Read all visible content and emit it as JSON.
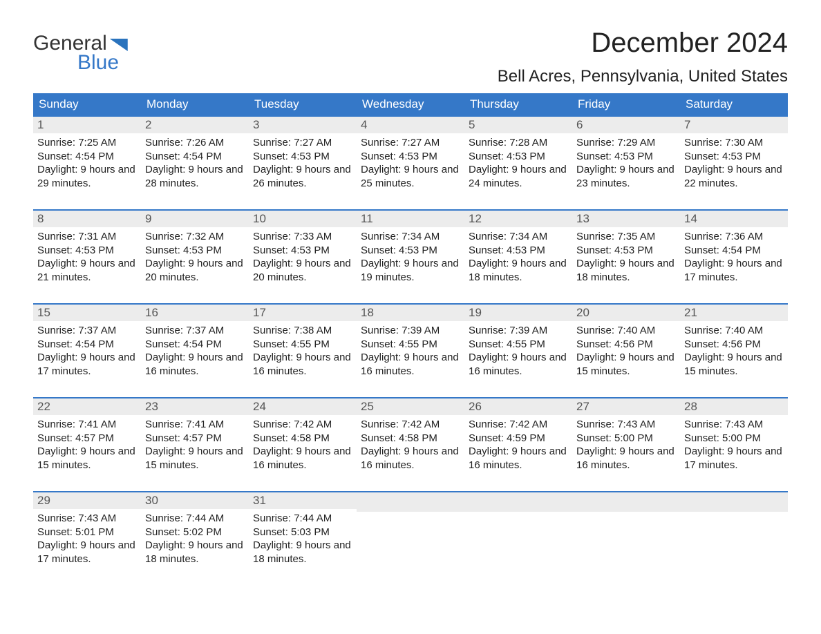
{
  "logo": {
    "word1": "General",
    "word2": "Blue"
  },
  "title": "December 2024",
  "location": "Bell Acres, Pennsylvania, United States",
  "header_bg": "#3578c8",
  "header_fg": "#ffffff",
  "daynum_bg": "#ececec",
  "rule_color": "#3578c8",
  "day_names": [
    "Sunday",
    "Monday",
    "Tuesday",
    "Wednesday",
    "Thursday",
    "Friday",
    "Saturday"
  ],
  "start_weekday": 0,
  "num_days": 31,
  "labels": {
    "sunrise": "Sunrise:",
    "sunset": "Sunset:",
    "daylight": "Daylight:"
  },
  "days": [
    {
      "n": 1,
      "sunrise": "7:25 AM",
      "sunset": "4:54 PM",
      "dl_h": 9,
      "dl_m": 29
    },
    {
      "n": 2,
      "sunrise": "7:26 AM",
      "sunset": "4:54 PM",
      "dl_h": 9,
      "dl_m": 28
    },
    {
      "n": 3,
      "sunrise": "7:27 AM",
      "sunset": "4:53 PM",
      "dl_h": 9,
      "dl_m": 26
    },
    {
      "n": 4,
      "sunrise": "7:27 AM",
      "sunset": "4:53 PM",
      "dl_h": 9,
      "dl_m": 25
    },
    {
      "n": 5,
      "sunrise": "7:28 AM",
      "sunset": "4:53 PM",
      "dl_h": 9,
      "dl_m": 24
    },
    {
      "n": 6,
      "sunrise": "7:29 AM",
      "sunset": "4:53 PM",
      "dl_h": 9,
      "dl_m": 23
    },
    {
      "n": 7,
      "sunrise": "7:30 AM",
      "sunset": "4:53 PM",
      "dl_h": 9,
      "dl_m": 22
    },
    {
      "n": 8,
      "sunrise": "7:31 AM",
      "sunset": "4:53 PM",
      "dl_h": 9,
      "dl_m": 21
    },
    {
      "n": 9,
      "sunrise": "7:32 AM",
      "sunset": "4:53 PM",
      "dl_h": 9,
      "dl_m": 20
    },
    {
      "n": 10,
      "sunrise": "7:33 AM",
      "sunset": "4:53 PM",
      "dl_h": 9,
      "dl_m": 20
    },
    {
      "n": 11,
      "sunrise": "7:34 AM",
      "sunset": "4:53 PM",
      "dl_h": 9,
      "dl_m": 19
    },
    {
      "n": 12,
      "sunrise": "7:34 AM",
      "sunset": "4:53 PM",
      "dl_h": 9,
      "dl_m": 18
    },
    {
      "n": 13,
      "sunrise": "7:35 AM",
      "sunset": "4:53 PM",
      "dl_h": 9,
      "dl_m": 18
    },
    {
      "n": 14,
      "sunrise": "7:36 AM",
      "sunset": "4:54 PM",
      "dl_h": 9,
      "dl_m": 17
    },
    {
      "n": 15,
      "sunrise": "7:37 AM",
      "sunset": "4:54 PM",
      "dl_h": 9,
      "dl_m": 17
    },
    {
      "n": 16,
      "sunrise": "7:37 AM",
      "sunset": "4:54 PM",
      "dl_h": 9,
      "dl_m": 16
    },
    {
      "n": 17,
      "sunrise": "7:38 AM",
      "sunset": "4:55 PM",
      "dl_h": 9,
      "dl_m": 16
    },
    {
      "n": 18,
      "sunrise": "7:39 AM",
      "sunset": "4:55 PM",
      "dl_h": 9,
      "dl_m": 16
    },
    {
      "n": 19,
      "sunrise": "7:39 AM",
      "sunset": "4:55 PM",
      "dl_h": 9,
      "dl_m": 16
    },
    {
      "n": 20,
      "sunrise": "7:40 AM",
      "sunset": "4:56 PM",
      "dl_h": 9,
      "dl_m": 15
    },
    {
      "n": 21,
      "sunrise": "7:40 AM",
      "sunset": "4:56 PM",
      "dl_h": 9,
      "dl_m": 15
    },
    {
      "n": 22,
      "sunrise": "7:41 AM",
      "sunset": "4:57 PM",
      "dl_h": 9,
      "dl_m": 15
    },
    {
      "n": 23,
      "sunrise": "7:41 AM",
      "sunset": "4:57 PM",
      "dl_h": 9,
      "dl_m": 15
    },
    {
      "n": 24,
      "sunrise": "7:42 AM",
      "sunset": "4:58 PM",
      "dl_h": 9,
      "dl_m": 16
    },
    {
      "n": 25,
      "sunrise": "7:42 AM",
      "sunset": "4:58 PM",
      "dl_h": 9,
      "dl_m": 16
    },
    {
      "n": 26,
      "sunrise": "7:42 AM",
      "sunset": "4:59 PM",
      "dl_h": 9,
      "dl_m": 16
    },
    {
      "n": 27,
      "sunrise": "7:43 AM",
      "sunset": "5:00 PM",
      "dl_h": 9,
      "dl_m": 16
    },
    {
      "n": 28,
      "sunrise": "7:43 AM",
      "sunset": "5:00 PM",
      "dl_h": 9,
      "dl_m": 17
    },
    {
      "n": 29,
      "sunrise": "7:43 AM",
      "sunset": "5:01 PM",
      "dl_h": 9,
      "dl_m": 17
    },
    {
      "n": 30,
      "sunrise": "7:44 AM",
      "sunset": "5:02 PM",
      "dl_h": 9,
      "dl_m": 18
    },
    {
      "n": 31,
      "sunrise": "7:44 AM",
      "sunset": "5:03 PM",
      "dl_h": 9,
      "dl_m": 18
    }
  ]
}
